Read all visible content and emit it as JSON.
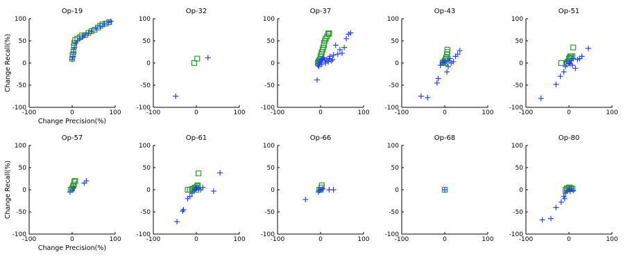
{
  "chart_data": {
    "type": "scatter",
    "xlabel": "Change Precision(%)",
    "ylabel": "Change Recall(%)",
    "xlim": [
      -100,
      100
    ],
    "ylim": [
      -100,
      100
    ],
    "xticks": [
      "-100",
      "0",
      "100"
    ],
    "yticks": [
      "100",
      "50",
      "0",
      "-50",
      "-100"
    ],
    "colors": {
      "plus": "#1f3fff",
      "square": "#2e9a2e"
    },
    "panels": [
      {
        "title": "Op-19",
        "plus": [
          [
            0,
            8
          ],
          [
            2,
            15
          ],
          [
            3,
            25
          ],
          [
            5,
            35
          ],
          [
            8,
            45
          ],
          [
            12,
            50
          ],
          [
            18,
            55
          ],
          [
            25,
            60
          ],
          [
            30,
            63
          ],
          [
            38,
            67
          ],
          [
            45,
            72
          ],
          [
            55,
            78
          ],
          [
            65,
            83
          ],
          [
            75,
            88
          ],
          [
            85,
            92
          ],
          [
            90,
            94
          ]
        ],
        "square": [
          [
            0,
            10
          ],
          [
            1,
            18
          ],
          [
            3,
            25
          ],
          [
            4,
            38
          ],
          [
            5,
            45
          ],
          [
            7,
            52
          ],
          [
            12,
            55
          ],
          [
            18,
            58
          ],
          [
            22,
            62
          ],
          [
            30,
            63
          ],
          [
            38,
            68
          ],
          [
            45,
            72
          ],
          [
            52,
            75
          ],
          [
            60,
            80
          ],
          [
            65,
            84
          ],
          [
            70,
            87
          ],
          [
            78,
            89
          ],
          [
            86,
            92
          ]
        ]
      },
      {
        "title": "Op-32",
        "plus": [
          [
            -48,
            -75
          ],
          [
            27,
            12
          ]
        ],
        "square": [
          [
            -5,
            0
          ],
          [
            2,
            10
          ]
        ]
      },
      {
        "title": "Op-37",
        "plus": [
          [
            -8,
            -38
          ],
          [
            -6,
            -5
          ],
          [
            -3,
            0
          ],
          [
            -2,
            5
          ],
          [
            0,
            2
          ],
          [
            2,
            8
          ],
          [
            5,
            10
          ],
          [
            8,
            12
          ],
          [
            10,
            5
          ],
          [
            15,
            8
          ],
          [
            18,
            3
          ],
          [
            20,
            10
          ],
          [
            22,
            15
          ],
          [
            25,
            5
          ],
          [
            28,
            8
          ],
          [
            30,
            18
          ],
          [
            35,
            40
          ],
          [
            40,
            20
          ],
          [
            45,
            30
          ],
          [
            50,
            22
          ],
          [
            55,
            35
          ],
          [
            60,
            55
          ],
          [
            65,
            65
          ],
          [
            70,
            68
          ],
          [
            -4,
            -8
          ],
          [
            3,
            -3
          ],
          [
            12,
            0
          ]
        ],
        "square": [
          [
            -6,
            0
          ],
          [
            -5,
            3
          ],
          [
            -3,
            5
          ],
          [
            -2,
            8
          ],
          [
            0,
            10
          ],
          [
            0,
            15
          ],
          [
            2,
            20
          ],
          [
            3,
            25
          ],
          [
            5,
            30
          ],
          [
            6,
            35
          ],
          [
            8,
            40
          ],
          [
            8,
            45
          ],
          [
            10,
            50
          ],
          [
            12,
            55
          ],
          [
            15,
            60
          ],
          [
            18,
            65
          ],
          [
            18,
            67
          ],
          [
            20,
            67
          ]
        ]
      },
      {
        "title": "Op-43",
        "plus": [
          [
            -55,
            -75
          ],
          [
            -40,
            -78
          ],
          [
            -18,
            -45
          ],
          [
            -15,
            -35
          ],
          [
            -10,
            -5
          ],
          [
            -5,
            0
          ],
          [
            0,
            5
          ],
          [
            5,
            -20
          ],
          [
            8,
            -8
          ],
          [
            10,
            5
          ],
          [
            15,
            0
          ],
          [
            20,
            3
          ],
          [
            25,
            15
          ],
          [
            30,
            20
          ],
          [
            35,
            28
          ],
          [
            -2,
            2
          ],
          [
            12,
            10
          ]
        ],
        "square": [
          [
            -5,
            0
          ],
          [
            -3,
            2
          ],
          [
            0,
            5
          ],
          [
            2,
            8
          ],
          [
            3,
            12
          ],
          [
            5,
            20
          ],
          [
            6,
            25
          ],
          [
            6,
            30
          ],
          [
            0,
            0
          ]
        ]
      },
      {
        "title": "Op-51",
        "plus": [
          [
            -65,
            -80
          ],
          [
            -30,
            -48
          ],
          [
            -20,
            -30
          ],
          [
            -12,
            -20
          ],
          [
            -8,
            -8
          ],
          [
            0,
            0
          ],
          [
            5,
            5
          ],
          [
            8,
            -5
          ],
          [
            10,
            10
          ],
          [
            15,
            -12
          ],
          [
            20,
            8
          ],
          [
            25,
            10
          ],
          [
            30,
            15
          ],
          [
            45,
            33
          ],
          [
            -5,
            3
          ],
          [
            3,
            -2
          ]
        ],
        "square": [
          [
            -18,
            0
          ],
          [
            -5,
            0
          ],
          [
            -3,
            3
          ],
          [
            0,
            5
          ],
          [
            0,
            10
          ],
          [
            2,
            12
          ],
          [
            3,
            15
          ],
          [
            5,
            15
          ],
          [
            8,
            15
          ],
          [
            10,
            35
          ]
        ]
      },
      {
        "title": "Op-57",
        "plus": [
          [
            -5,
            -5
          ],
          [
            0,
            0
          ],
          [
            3,
            5
          ],
          [
            28,
            15
          ],
          [
            33,
            20
          ]
        ],
        "square": [
          [
            -3,
            0
          ],
          [
            0,
            3
          ],
          [
            2,
            8
          ],
          [
            4,
            12
          ],
          [
            5,
            18
          ],
          [
            7,
            20
          ]
        ]
      },
      {
        "title": "Op-61",
        "plus": [
          [
            -45,
            -72
          ],
          [
            -32,
            -48
          ],
          [
            -30,
            -45
          ],
          [
            -20,
            -20
          ],
          [
            -15,
            -15
          ],
          [
            -10,
            -8
          ],
          [
            -5,
            0
          ],
          [
            0,
            5
          ],
          [
            5,
            3
          ],
          [
            10,
            0
          ],
          [
            15,
            5
          ],
          [
            40,
            -3
          ],
          [
            55,
            38
          ],
          [
            -2,
            2
          ]
        ],
        "square": [
          [
            -20,
            0
          ],
          [
            -15,
            0
          ],
          [
            -10,
            2
          ],
          [
            -5,
            3
          ],
          [
            -3,
            5
          ],
          [
            0,
            5
          ],
          [
            2,
            8
          ],
          [
            3,
            10
          ],
          [
            5,
            37
          ],
          [
            0,
            0
          ],
          [
            -8,
            0
          ]
        ]
      },
      {
        "title": "Op-66",
        "plus": [
          [
            -35,
            -22
          ],
          [
            -5,
            -5
          ],
          [
            0,
            0
          ],
          [
            5,
            2
          ],
          [
            20,
            0
          ],
          [
            30,
            0
          ],
          [
            -2,
            -2
          ]
        ],
        "square": [
          [
            -3,
            0
          ],
          [
            0,
            0
          ],
          [
            2,
            5
          ],
          [
            3,
            10
          ]
        ]
      },
      {
        "title": "Op-68",
        "plus": [
          [
            0,
            0
          ]
        ],
        "square": [
          [
            0,
            0
          ]
        ]
      },
      {
        "title": "Op-80",
        "plus": [
          [
            -62,
            -68
          ],
          [
            -42,
            -65
          ],
          [
            -30,
            -40
          ],
          [
            -18,
            -28
          ],
          [
            -12,
            -15
          ],
          [
            -8,
            -8
          ],
          [
            -5,
            -3
          ],
          [
            0,
            0
          ],
          [
            5,
            2
          ],
          [
            10,
            -2
          ],
          [
            -10,
            -20
          ],
          [
            3,
            -4
          ]
        ],
        "square": [
          [
            -8,
            0
          ],
          [
            -5,
            3
          ],
          [
            -3,
            3
          ],
          [
            0,
            5
          ],
          [
            2,
            5
          ],
          [
            5,
            3
          ],
          [
            8,
            2
          ]
        ]
      }
    ]
  }
}
